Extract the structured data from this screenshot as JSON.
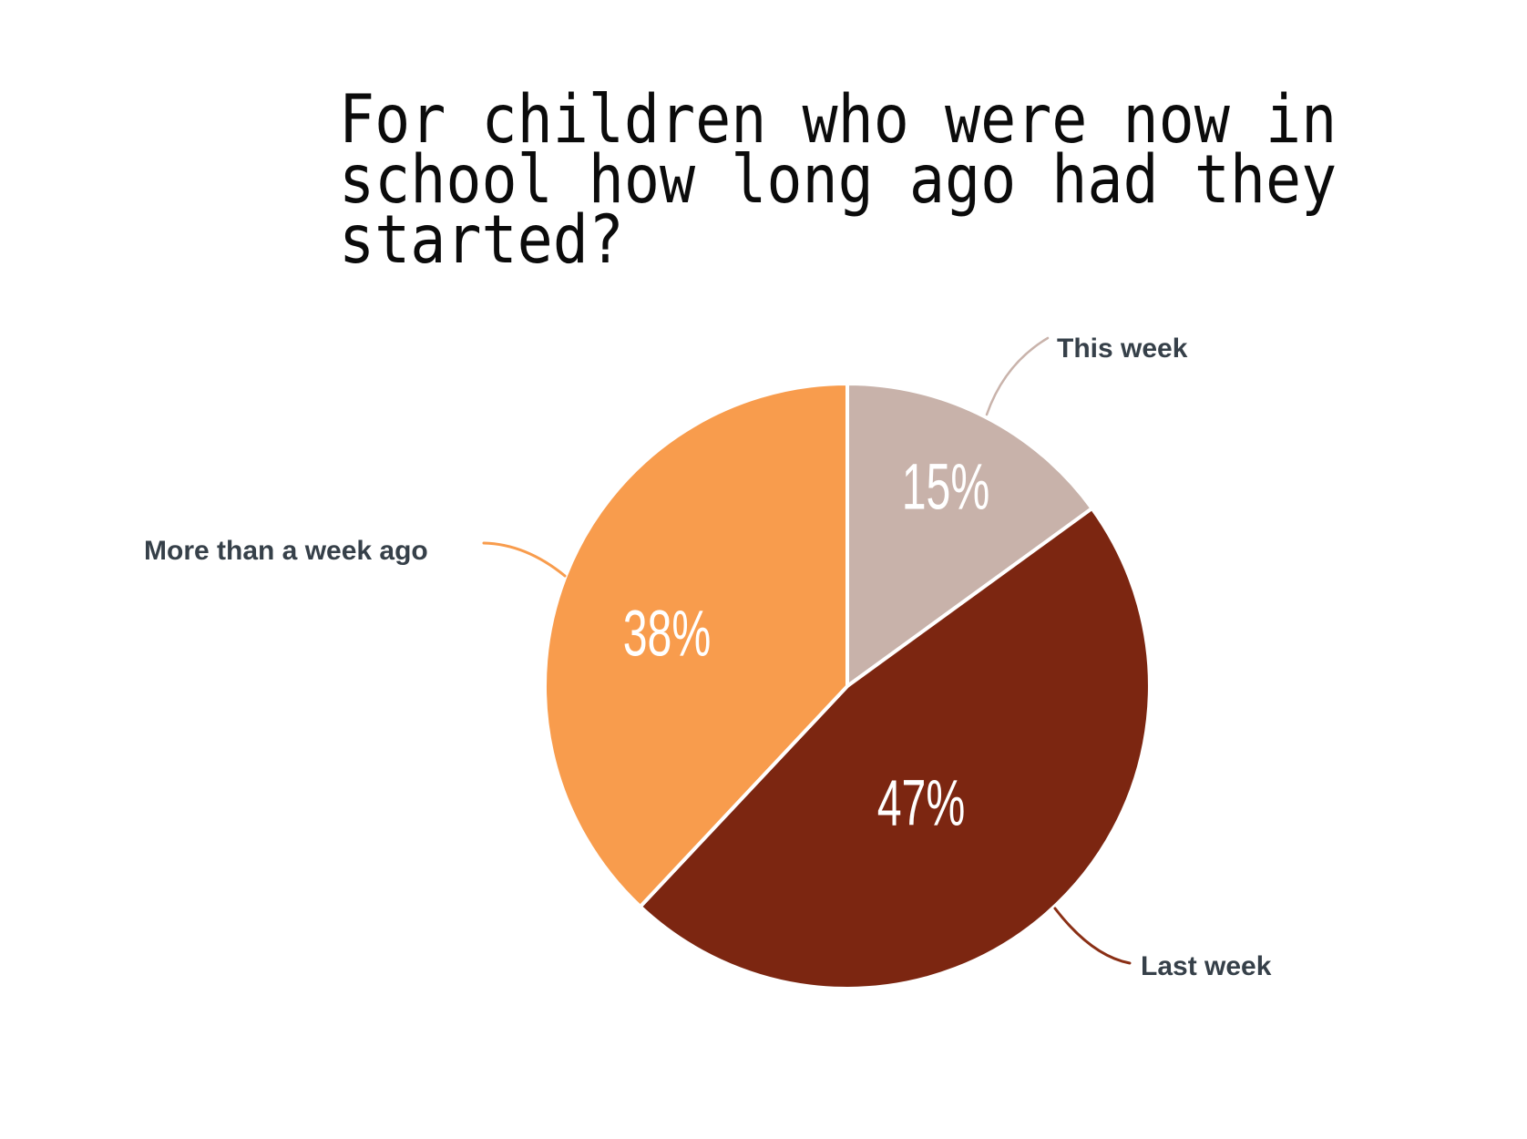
{
  "chart_data": {
    "type": "pie",
    "title": "For children who were now in school how long ago had they started?",
    "direction": "clockwise",
    "start_angle": "12 o'clock",
    "value_label_style": "white percent text inside slices",
    "category_label_style": "dark slate bold text outside with curved leader lines",
    "segments": [
      {
        "label": "This week",
        "value": 15,
        "display": "15%",
        "color": "#C8B2AA",
        "leader_color": "#C9B3AB"
      },
      {
        "label": "Last week",
        "value": 47,
        "display": "47%",
        "color": "#7C2611",
        "leader_color": "#8A2F15"
      },
      {
        "label": "More than a week ago",
        "value": 38,
        "display": "38%",
        "color": "#F89C4D",
        "leader_color": "#F89C4D"
      }
    ]
  },
  "colors": {
    "background": "#FFFFFF",
    "title_text": "#0B0B0B",
    "category_label_text": "#364049",
    "slice_separator": "#FFFFFF",
    "percent_text": "#FFFFFF"
  }
}
